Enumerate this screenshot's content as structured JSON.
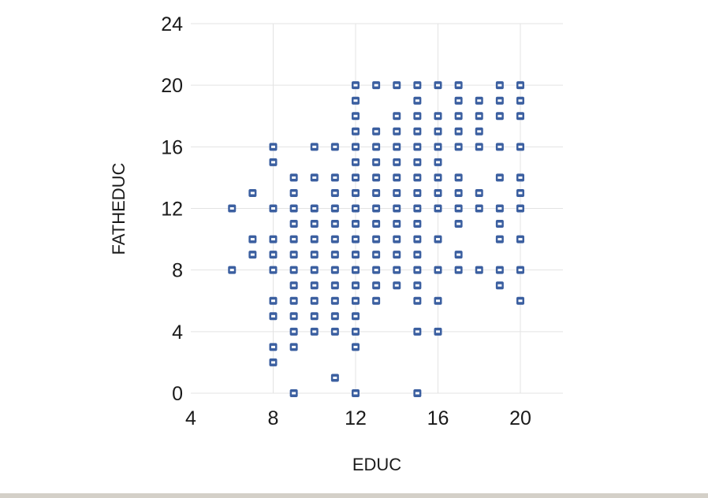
{
  "chart_data": {
    "type": "scatter",
    "xlabel": "EDUC",
    "ylabel": "FATHEDUC",
    "xlim": [
      4,
      22
    ],
    "ylim": [
      0,
      24
    ],
    "xticks": [
      "4",
      "8",
      "12",
      "16",
      "20"
    ],
    "yticks": [
      "0",
      "4",
      "8",
      "12",
      "16",
      "20",
      "24"
    ],
    "grid": true,
    "marker_color": "#3b5fa0",
    "points": [
      [
        6,
        8
      ],
      [
        6,
        12
      ],
      [
        7,
        9
      ],
      [
        7,
        10
      ],
      [
        7,
        13
      ],
      [
        8,
        2
      ],
      [
        8,
        3
      ],
      [
        8,
        5
      ],
      [
        8,
        6
      ],
      [
        8,
        8
      ],
      [
        8,
        9
      ],
      [
        8,
        10
      ],
      [
        8,
        12
      ],
      [
        8,
        15
      ],
      [
        8,
        16
      ],
      [
        9,
        0
      ],
      [
        9,
        3
      ],
      [
        9,
        4
      ],
      [
        9,
        5
      ],
      [
        9,
        6
      ],
      [
        9,
        7
      ],
      [
        9,
        8
      ],
      [
        9,
        9
      ],
      [
        9,
        10
      ],
      [
        9,
        11
      ],
      [
        9,
        12
      ],
      [
        9,
        13
      ],
      [
        9,
        14
      ],
      [
        10,
        4
      ],
      [
        10,
        5
      ],
      [
        10,
        6
      ],
      [
        10,
        7
      ],
      [
        10,
        8
      ],
      [
        10,
        9
      ],
      [
        10,
        10
      ],
      [
        10,
        11
      ],
      [
        10,
        12
      ],
      [
        10,
        14
      ],
      [
        10,
        16
      ],
      [
        11,
        1
      ],
      [
        11,
        4
      ],
      [
        11,
        5
      ],
      [
        11,
        6
      ],
      [
        11,
        7
      ],
      [
        11,
        8
      ],
      [
        11,
        9
      ],
      [
        11,
        10
      ],
      [
        11,
        11
      ],
      [
        11,
        12
      ],
      [
        11,
        13
      ],
      [
        11,
        14
      ],
      [
        11,
        16
      ],
      [
        12,
        0
      ],
      [
        12,
        3
      ],
      [
        12,
        4
      ],
      [
        12,
        5
      ],
      [
        12,
        6
      ],
      [
        12,
        7
      ],
      [
        12,
        8
      ],
      [
        12,
        9
      ],
      [
        12,
        10
      ],
      [
        12,
        11
      ],
      [
        12,
        12
      ],
      [
        12,
        13
      ],
      [
        12,
        14
      ],
      [
        12,
        15
      ],
      [
        12,
        16
      ],
      [
        12,
        17
      ],
      [
        12,
        18
      ],
      [
        12,
        19
      ],
      [
        12,
        20
      ],
      [
        13,
        6
      ],
      [
        13,
        7
      ],
      [
        13,
        8
      ],
      [
        13,
        9
      ],
      [
        13,
        10
      ],
      [
        13,
        11
      ],
      [
        13,
        12
      ],
      [
        13,
        13
      ],
      [
        13,
        14
      ],
      [
        13,
        15
      ],
      [
        13,
        16
      ],
      [
        13,
        17
      ],
      [
        13,
        20
      ],
      [
        14,
        7
      ],
      [
        14,
        8
      ],
      [
        14,
        9
      ],
      [
        14,
        10
      ],
      [
        14,
        11
      ],
      [
        14,
        12
      ],
      [
        14,
        13
      ],
      [
        14,
        14
      ],
      [
        14,
        15
      ],
      [
        14,
        16
      ],
      [
        14,
        17
      ],
      [
        14,
        18
      ],
      [
        14,
        20
      ],
      [
        15,
        0
      ],
      [
        15,
        4
      ],
      [
        15,
        6
      ],
      [
        15,
        7
      ],
      [
        15,
        8
      ],
      [
        15,
        9
      ],
      [
        15,
        10
      ],
      [
        15,
        11
      ],
      [
        15,
        12
      ],
      [
        15,
        13
      ],
      [
        15,
        14
      ],
      [
        15,
        15
      ],
      [
        15,
        16
      ],
      [
        15,
        17
      ],
      [
        15,
        18
      ],
      [
        15,
        19
      ],
      [
        15,
        20
      ],
      [
        16,
        4
      ],
      [
        16,
        6
      ],
      [
        16,
        8
      ],
      [
        16,
        10
      ],
      [
        16,
        12
      ],
      [
        16,
        13
      ],
      [
        16,
        14
      ],
      [
        16,
        15
      ],
      [
        16,
        16
      ],
      [
        16,
        17
      ],
      [
        16,
        18
      ],
      [
        16,
        20
      ],
      [
        17,
        8
      ],
      [
        17,
        9
      ],
      [
        17,
        11
      ],
      [
        17,
        12
      ],
      [
        17,
        13
      ],
      [
        17,
        14
      ],
      [
        17,
        16
      ],
      [
        17,
        17
      ],
      [
        17,
        18
      ],
      [
        17,
        19
      ],
      [
        17,
        20
      ],
      [
        18,
        8
      ],
      [
        18,
        12
      ],
      [
        18,
        13
      ],
      [
        18,
        16
      ],
      [
        18,
        17
      ],
      [
        18,
        18
      ],
      [
        18,
        19
      ],
      [
        19,
        7
      ],
      [
        19,
        8
      ],
      [
        19,
        10
      ],
      [
        19,
        11
      ],
      [
        19,
        12
      ],
      [
        19,
        14
      ],
      [
        19,
        16
      ],
      [
        19,
        18
      ],
      [
        19,
        19
      ],
      [
        19,
        20
      ],
      [
        20,
        6
      ],
      [
        20,
        8
      ],
      [
        20,
        10
      ],
      [
        20,
        12
      ],
      [
        20,
        13
      ],
      [
        20,
        14
      ],
      [
        20,
        16
      ],
      [
        20,
        18
      ],
      [
        20,
        19
      ],
      [
        20,
        20
      ]
    ]
  }
}
